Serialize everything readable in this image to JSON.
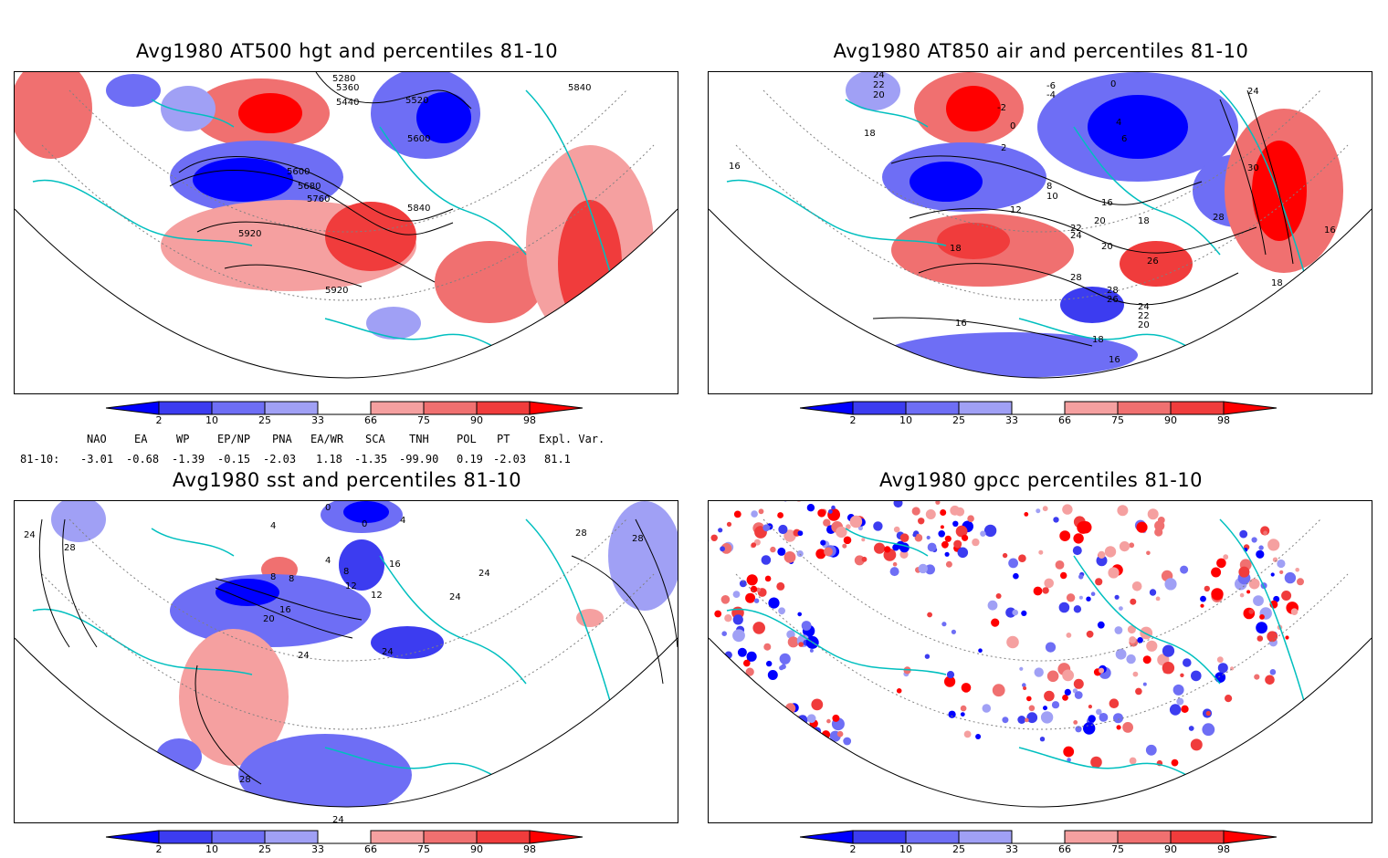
{
  "panels": [
    {
      "title": "Avg1980 AT500 hgt and percentiles 81-10",
      "contour_labels": [
        "5280",
        "5360",
        "5440",
        "5520",
        "5600",
        "5600",
        "5680",
        "5760",
        "5840",
        "5840",
        "5920",
        "5920"
      ]
    },
    {
      "title": "Avg1980 AT850 air and percentiles 81-10",
      "contour_labels": [
        "24",
        "22",
        "20",
        "18",
        "-6",
        "-4",
        "0",
        "-2",
        "0",
        "2",
        "4",
        "6",
        "8",
        "10",
        "12",
        "16",
        "18",
        "20",
        "22",
        "24",
        "26",
        "28",
        "28",
        "26",
        "24",
        "22",
        "20",
        "18",
        "16",
        "16",
        "18",
        "16",
        "30",
        "28",
        "20",
        "24",
        "16",
        "18"
      ]
    },
    {
      "title": "Avg1980 sst and percentiles 81-10",
      "contour_labels": [
        "24",
        "28",
        "0",
        "4",
        "0",
        "4",
        "8",
        "12",
        "16",
        "20",
        "24",
        "24",
        "28",
        "24",
        "28",
        "28",
        "24",
        "8",
        "16",
        "12",
        "24",
        "4",
        "8"
      ]
    },
    {
      "title": "Avg1980 gpcc percentiles 81-10",
      "contour_labels": []
    }
  ],
  "colorbar": {
    "labels": [
      "2",
      "10",
      "25",
      "33",
      "66",
      "75",
      "90",
      "98"
    ],
    "blue_colors": [
      "#0000ff",
      "#3c3cf0",
      "#6e6ef5",
      "#a0a0f5"
    ],
    "red_colors": [
      "#f5a0a0",
      "#f07070",
      "#f03c3c",
      "#ff0000"
    ]
  },
  "indices": {
    "headers": [
      "NAO",
      "EA",
      "WP",
      "EP/NP",
      "PNA",
      "EA/WR",
      "SCA",
      "TNH",
      "POL",
      "PT",
      "Expl. Var."
    ],
    "row_label": "81-10:",
    "values": [
      "-3.01",
      "-0.68",
      "-1.39",
      "-0.15",
      "-2.03",
      "1.18",
      "-1.35",
      "-99.90",
      "0.19",
      "-2.03",
      "81.1"
    ]
  },
  "colors": {
    "coastline": "#00bfbf",
    "contour": "#000000",
    "grid": "#808080"
  }
}
